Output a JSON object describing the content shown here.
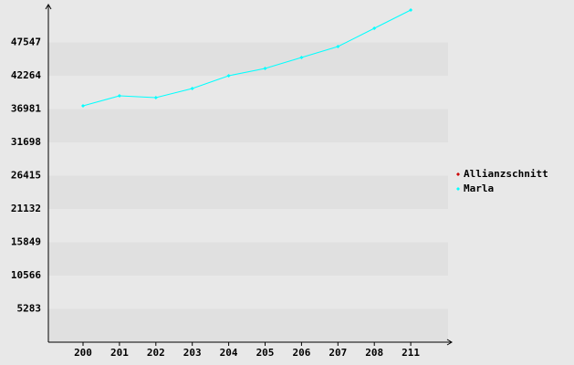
{
  "chart_data": {
    "type": "line",
    "categories": [
      "200",
      "201",
      "202",
      "203",
      "204",
      "205",
      "206",
      "207",
      "208",
      "211"
    ],
    "series": [
      {
        "name": "Allianzschnitt",
        "color": "#cc0000",
        "values": [
          null,
          null,
          null,
          null,
          null,
          null,
          null,
          null,
          null,
          null
        ]
      },
      {
        "name": "Marla",
        "color": "#00ffff",
        "values": [
          37488,
          39080,
          38790,
          40237,
          42264,
          43422,
          45159,
          46896,
          49790,
          52685
        ]
      }
    ],
    "ylim": [
      0,
      52830
    ],
    "yticks": [
      5283,
      10566,
      15849,
      21132,
      26415,
      31698,
      36981,
      42264,
      47547
    ],
    "legend": "right"
  }
}
